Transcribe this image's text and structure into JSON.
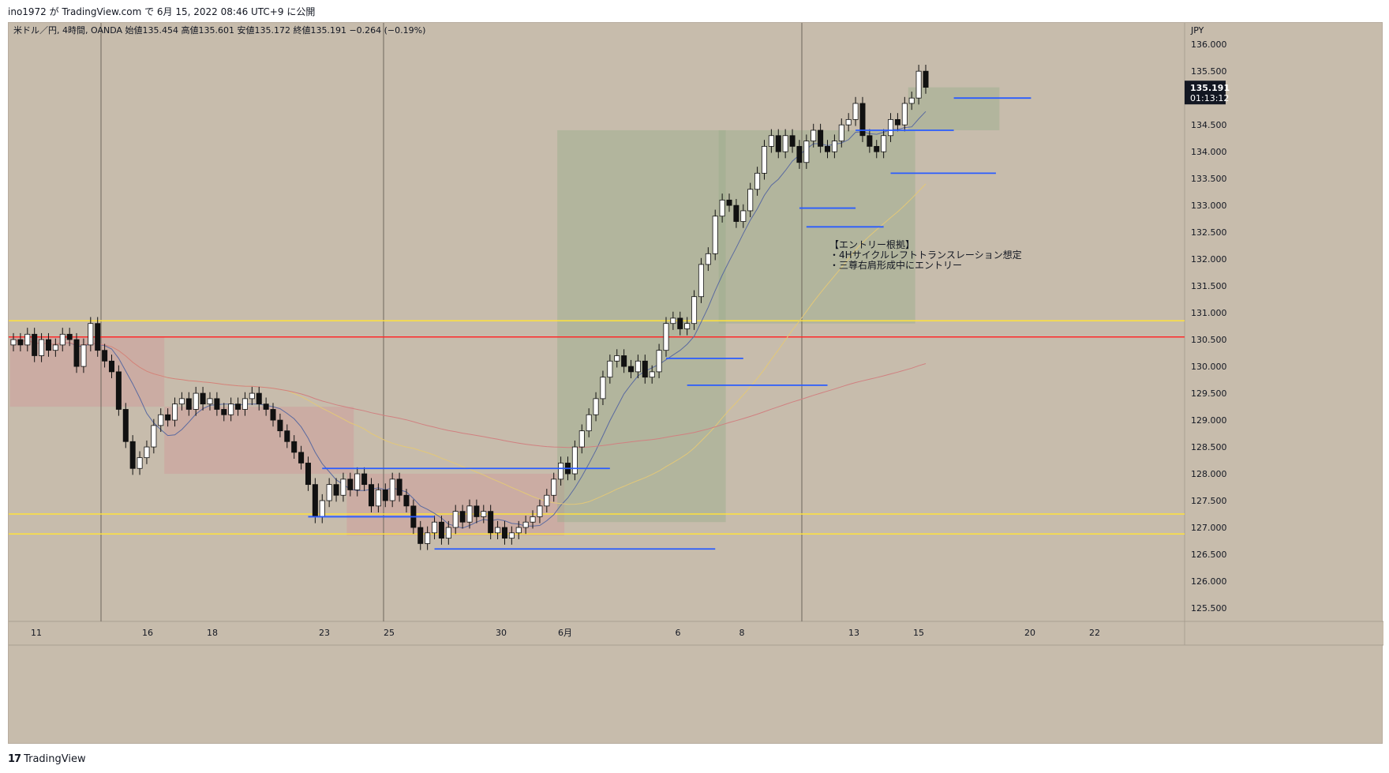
{
  "published_by": "ino1972 が TradingView.com で 6月 15, 2022 08:46 UTC+9 に公開",
  "chart_data": {
    "type": "candlestick",
    "symbol_header": "米ドル／円, 4時間, OANDA",
    "ohlc_labels": {
      "open": "始値135.454",
      "high": "高値135.601",
      "low": "安値135.172",
      "close": "終値135.191",
      "change": "−0.264 (−0.19%)"
    },
    "currency": "JPY",
    "y_range": [
      125.25,
      136.4
    ],
    "y_ticks": [
      "136.000",
      "135.500",
      "135.000",
      "134.500",
      "134.000",
      "133.500",
      "133.000",
      "132.500",
      "132.000",
      "131.500",
      "131.000",
      "130.500",
      "130.000",
      "129.500",
      "129.000",
      "128.500",
      "128.000",
      "127.500",
      "127.000",
      "126.500",
      "126.000",
      "125.500"
    ],
    "x_ticks": [
      "11",
      "16",
      "18",
      "23",
      "25",
      "30",
      "6月",
      "6",
      "8",
      "13",
      "15",
      "20",
      "22"
    ],
    "last_price": "135.191",
    "countdown": "01:13:12",
    "closes": [
      130.5,
      130.4,
      130.6,
      130.2,
      130.5,
      130.3,
      130.4,
      130.6,
      130.5,
      130.0,
      130.4,
      130.8,
      130.3,
      130.1,
      129.9,
      129.2,
      128.6,
      128.1,
      128.3,
      128.5,
      128.9,
      129.1,
      129.0,
      129.3,
      129.4,
      129.2,
      129.5,
      129.3,
      129.4,
      129.2,
      129.1,
      129.3,
      129.2,
      129.4,
      129.5,
      129.3,
      129.2,
      129.0,
      128.8,
      128.6,
      128.4,
      128.2,
      127.8,
      127.2,
      127.5,
      127.8,
      127.6,
      127.9,
      127.7,
      128.0,
      127.8,
      127.4,
      127.7,
      127.5,
      127.9,
      127.6,
      127.4,
      127.0,
      126.7,
      126.9,
      127.1,
      126.8,
      127.0,
      127.3,
      127.1,
      127.4,
      127.2,
      127.3,
      126.9,
      127.0,
      126.8,
      126.9,
      127.0,
      127.1,
      127.2,
      127.4,
      127.6,
      127.9,
      128.2,
      128.0,
      128.5,
      128.8,
      129.1,
      129.4,
      129.8,
      130.1,
      130.2,
      130.0,
      129.9,
      130.1,
      129.8,
      129.9,
      130.3,
      130.8,
      130.9,
      130.7,
      130.8,
      131.3,
      131.9,
      132.1,
      132.8,
      133.1,
      133.0,
      132.7,
      132.9,
      133.3,
      133.6,
      134.1,
      134.3,
      134.0,
      134.3,
      134.1,
      133.8,
      134.2,
      134.4,
      134.1,
      134.0,
      134.2,
      134.5,
      134.6,
      134.9,
      134.3,
      134.1,
      134.0,
      134.3,
      134.6,
      134.5,
      134.9,
      135.0,
      135.5,
      135.2
    ],
    "horizontal_lines": [
      {
        "price": 130.85,
        "color": "#ffe23b"
      },
      {
        "price": 130.55,
        "color": "#ff2a2a"
      },
      {
        "price": 127.25,
        "color": "#ffe23b"
      },
      {
        "price": 126.88,
        "color": "#ffe23b"
      }
    ],
    "annotation": [
      "【エントリー根拠】",
      "・4Hサイクルレフトトランスレーション想定",
      "・三尊右肩形成中にエントリー"
    ]
  },
  "colors": {
    "background": "#c7bcac",
    "bull": "#ffffff",
    "bear": "#111111",
    "green_zone": "#9aac8c",
    "red_zone": "#d09a9a",
    "blue_line": "#2a5cff"
  },
  "footer_logo": "TradingView"
}
